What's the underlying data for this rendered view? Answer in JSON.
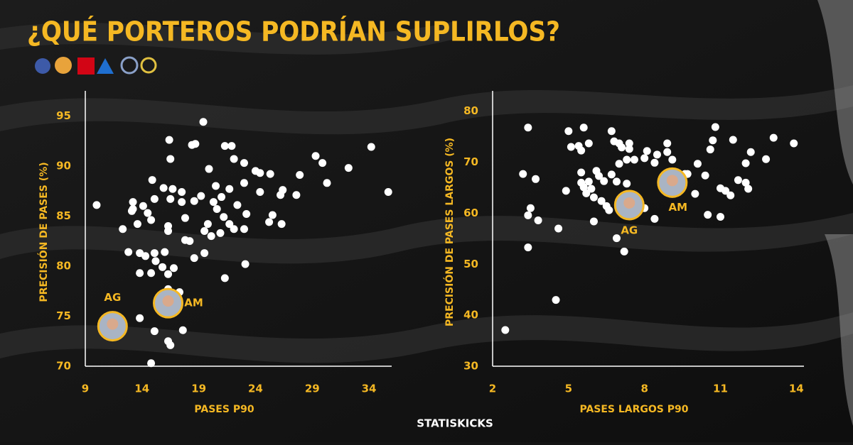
{
  "header": {
    "title": "¿QUÉ PORTEROS PODRÍAN SUPLIRLOS?"
  },
  "footer": {
    "brand": "STATISKICKS"
  },
  "chart_data": [
    {
      "type": "scatter",
      "x_label": "PASES P90",
      "y_label": "PRECISIÓN DE PASES (%)",
      "color": "#ffffff",
      "xlim": [
        9,
        36
      ],
      "ylim": [
        70,
        97.5
      ],
      "xticks": [
        9,
        14,
        19,
        24,
        29,
        34
      ],
      "yticks": [
        70,
        75,
        80,
        85,
        90,
        95
      ],
      "x": [
        10.0,
        19.4,
        16.4,
        18.4,
        18.7,
        21.3,
        21.9,
        16.5,
        22.1,
        19.9,
        23.0,
        24.0,
        24.4,
        25.3,
        27.9,
        29.3,
        29.9,
        32.2,
        34.2,
        30.3,
        35.7,
        27.6,
        26.4,
        25.5,
        26.3,
        25.2,
        26.2,
        24.4,
        23.0,
        21.7,
        21.0,
        20.3,
        19.2,
        20.6,
        21.2,
        21.7,
        19.8,
        19.5,
        20.1,
        20.9,
        22.1,
        23.0,
        23.2,
        17.8,
        17.8,
        18.2,
        16.3,
        16.3,
        14.8,
        13.6,
        12.3,
        13.1,
        13.2,
        13.2,
        14.1,
        14.5,
        14.9,
        15.9,
        16.7,
        17.5,
        16.5,
        17.5,
        18.6,
        15.1,
        12.8,
        13.8,
        14.3,
        15.1,
        16.0,
        15.2,
        15.8,
        16.8,
        13.8,
        14.8,
        16.3,
        18.6,
        23.1,
        21.3,
        13.8,
        15.1,
        17.6,
        16.3,
        16.5,
        14.8,
        16.3,
        17.3,
        19.5,
        20.5,
        22.4
      ],
      "values": [
        86.1,
        94.4,
        92.6,
        92.1,
        92.2,
        92.0,
        92.0,
        90.7,
        90.7,
        89.7,
        90.3,
        89.5,
        89.3,
        89.2,
        89.1,
        91.0,
        90.3,
        89.8,
        91.9,
        88.3,
        87.4,
        87.1,
        87.6,
        85.1,
        84.2,
        84.4,
        87.1,
        87.4,
        88.3,
        87.7,
        86.9,
        86.4,
        87.0,
        85.7,
        84.9,
        84.2,
        84.2,
        83.5,
        83.0,
        83.3,
        83.7,
        83.7,
        85.2,
        84.8,
        82.6,
        82.5,
        84.0,
        83.5,
        84.6,
        84.2,
        83.7,
        85.5,
        86.4,
        85.7,
        86.0,
        85.3,
        88.6,
        87.8,
        87.7,
        87.4,
        86.7,
        86.4,
        86.5,
        86.7,
        81.4,
        81.3,
        81.0,
        81.3,
        81.4,
        80.5,
        79.9,
        79.8,
        79.3,
        79.3,
        79.2,
        80.8,
        80.2,
        78.8,
        74.8,
        73.5,
        73.6,
        72.5,
        72.1,
        70.3,
        77.7,
        77.4,
        81.3,
        88.0,
        86.1
      ],
      "highlights": [
        {
          "label": "AG",
          "x": 11.4,
          "y": 74.0
        },
        {
          "label": "AM",
          "x": 16.3,
          "y": 76.3
        }
      ]
    },
    {
      "type": "scatter",
      "x_label": "PASES LARGOS P90",
      "y_label": "PRECISIÓN DE PASES LARGOS (%)",
      "color": "#ffffff",
      "xlim": [
        2,
        14.3
      ],
      "ylim": [
        30,
        84
      ],
      "xticks": [
        2,
        5,
        8,
        11,
        14
      ],
      "yticks": [
        30,
        40,
        50,
        60,
        70,
        80
      ],
      "x": [
        2.5,
        3.4,
        3.2,
        3.7,
        3.5,
        3.4,
        3.8,
        3.4,
        4.5,
        4.6,
        4.9,
        5.0,
        5.1,
        5.4,
        5.5,
        5.6,
        5.8,
        5.5,
        5.5,
        5.6,
        5.7,
        5.8,
        5.9,
        6.1,
        6.2,
        6.4,
        6.0,
        6.3,
        6.5,
        6.6,
        6.0,
        6.7,
        6.8,
        7.0,
        7.1,
        7.4,
        7.4,
        7.6,
        7.3,
        7.0,
        6.7,
        6.9,
        7.3,
        6.9,
        7.2,
        8.0,
        8.1,
        8.4,
        8.5,
        8.9,
        8.9,
        9.1,
        8.4,
        8.0,
        9.6,
        9.7,
        10.0,
        9.5,
        10.1,
        10.4,
        10.6,
        10.7,
        10.8,
        10.5,
        11.0,
        11.0,
        11.2,
        11.4,
        11.5,
        11.7,
        12.0,
        12.2,
        12.0,
        12.1,
        12.8,
        13.1,
        13.9
      ],
      "values": [
        37.1,
        76.8,
        67.7,
        66.7,
        61.0,
        59.6,
        58.6,
        53.3,
        43.0,
        57.0,
        64.4,
        76.1,
        73.0,
        73.2,
        72.3,
        76.8,
        73.7,
        68.0,
        66.0,
        65.1,
        63.9,
        66.2,
        64.8,
        68.3,
        67.3,
        66.3,
        63.1,
        62.4,
        61.4,
        60.6,
        58.4,
        76.1,
        74.1,
        73.7,
        72.9,
        73.7,
        72.6,
        70.5,
        70.5,
        69.7,
        67.6,
        66.2,
        65.8,
        55.1,
        52.5,
        70.8,
        72.2,
        69.9,
        71.5,
        73.7,
        72.0,
        70.5,
        58.9,
        61.0,
        67.7,
        67.7,
        63.8,
        65.3,
        69.7,
        67.4,
        72.5,
        74.3,
        76.9,
        59.7,
        59.3,
        64.9,
        64.4,
        63.5,
        74.4,
        66.5,
        69.8,
        72.0,
        66.0,
        64.8,
        70.6,
        74.8,
        73.7
      ],
      "highlights": [
        {
          "label": "AG",
          "x": 7.4,
          "y": 61.6
        },
        {
          "label": "AM",
          "x": 9.1,
          "y": 66.0
        }
      ]
    }
  ]
}
